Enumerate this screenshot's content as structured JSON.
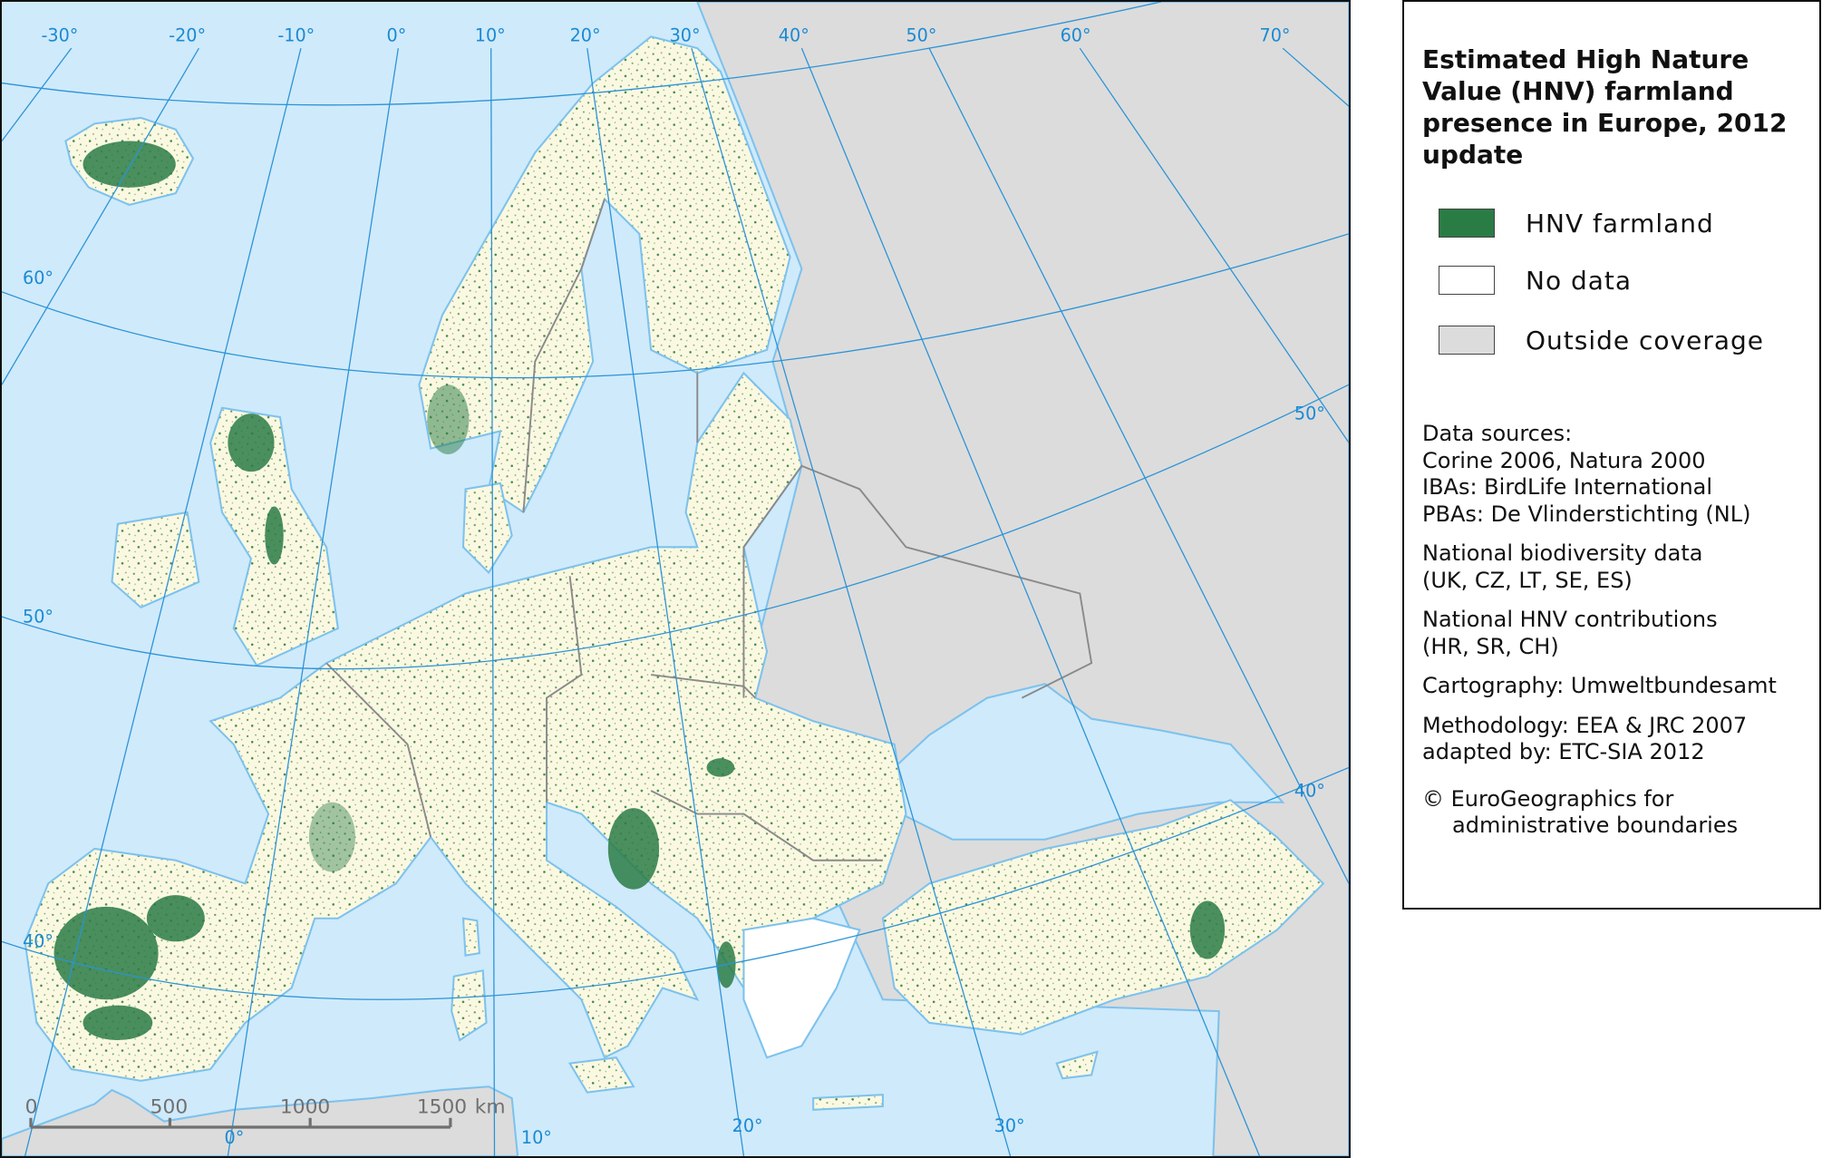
{
  "legend": {
    "title": "Estimated High Nature Value (HNV) farmland presence in Europe, 2012 update",
    "items": [
      {
        "label": "HNV farmland",
        "color": "#2a7c45"
      },
      {
        "label": "No data",
        "color": "#ffffff"
      },
      {
        "label": "Outside coverage",
        "color": "#dcdcdc"
      }
    ],
    "sources": {
      "data_sources_heading": "Data sources:",
      "data_sources": [
        "Corine 2006, Natura 2000",
        "IBAs: BirdLife International",
        "PBAs: De Vlinderstichting (NL)"
      ],
      "national_biodiversity": [
        "National biodiversity data",
        "(UK, CZ, LT, SE, ES)"
      ],
      "national_hnv": [
        "National HNV contributions",
        "(HR, SR, CH)"
      ],
      "cartography": "Cartography: Umweltbundesamt",
      "methodology": [
        "Methodology: EEA & JRC 2007",
        "adapted by: ETC-SIA 2012"
      ],
      "copyright": [
        "© EuroGeographics for",
        "administrative boundaries"
      ]
    }
  },
  "map": {
    "colors": {
      "sea": "#cfeafb",
      "covered_land": "#fbf8e1",
      "outside": "#dcdcdc",
      "graticule": "#2b93d6",
      "coast": "#7cc2ee"
    },
    "graticule_labels": {
      "top": [
        "-30°",
        "-20°",
        "-10°",
        "0°",
        "10°",
        "20°",
        "30°",
        "40°",
        "50°",
        "60°",
        "70°"
      ],
      "left": [
        "60°",
        "50°",
        "40°"
      ],
      "right": [
        "50°",
        "40°"
      ],
      "bottom": [
        "0°",
        "10°",
        "20°",
        "30°"
      ]
    },
    "scale_bar": {
      "labels": [
        "0",
        "500",
        "1000",
        "1500"
      ],
      "unit": "km"
    }
  }
}
